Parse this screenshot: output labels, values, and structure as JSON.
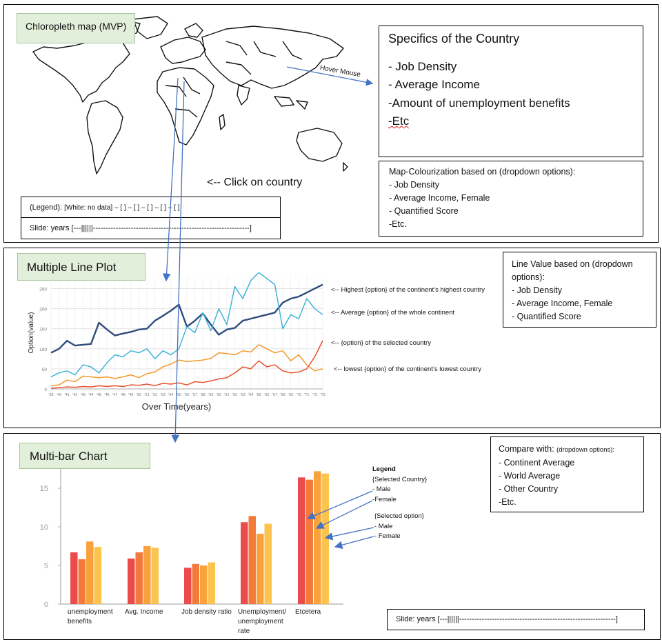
{
  "colors": {
    "green_label_bg": "#e2efda",
    "arrow_blue": "#4472c4",
    "line_dark": "#2e4b7c",
    "line_light": "#3fb3d9",
    "line_orange": "#f39a2b",
    "line_red": "#e94e2a",
    "bar_red": "#ec4b4b",
    "bar_orange": "#f47a3c",
    "bar_amber": "#f9a23b",
    "bar_yellow": "#fdc34f"
  },
  "section1": {
    "title": "Chloropleth map (MVP)",
    "specifics": {
      "title": "Specifics of the Country",
      "items": [
        "- Job Density",
        "- Average Income",
        "-Amount of unemployment benefits",
        "-Etc"
      ]
    },
    "hover_label": "Hover Mouse",
    "click_label": "<-- Click on country",
    "legend_label": "(Legend):",
    "legend_text": "[White: no data] – [     ] – [     ] – [     ] – [     ] – [     ]",
    "slide_text": "Slide: years [---||||||--------------------------------------------------------------]",
    "colourization": {
      "title": "Map-Colourization based on (dropdown options):",
      "items": [
        "- Job Density",
        "- Average Income, Female",
        "- Quantified Score",
        "-Etc."
      ]
    }
  },
  "section2": {
    "title": "Multiple Line Plot",
    "line_value_box": {
      "title": "Line Value based on (dropdown options):",
      "items": [
        "- Job Density",
        "- Average Income, Female",
        "- Quantified Score"
      ]
    },
    "annotations": [
      "<-- Highest {option} of the continent’s highest country",
      "<-- Average {option} of the whole continent",
      "<-- {option} of the selected country",
      "<-- lowest {option} of the continent’s lowest country"
    ]
  },
  "section3": {
    "title": "Multi-bar Chart",
    "compare_box": {
      "title": "Compare with:",
      "title_suffix": "(dropdown options):",
      "items": [
        "- Continent Average",
        "- World Average",
        "- Other Country",
        "-Etc."
      ]
    },
    "legend": {
      "title": "Legend",
      "group1": "{Selected Country}",
      "g1_items": [
        "- Male",
        "-Female"
      ],
      "group2": "{Selected option}",
      "g2_items": [
        "- Male",
        "- Female"
      ]
    },
    "slide_text": "Slide: years [---||||||--------------------------------------------------------------]"
  },
  "chart_data": [
    {
      "type": "line",
      "title": "",
      "xlabel": "Over Time(years)",
      "ylabel": "Option(value)",
      "x": [
        "'39",
        "'40",
        "'41",
        "'42",
        "'43",
        "'44",
        "'45",
        "'46",
        "'47",
        "'48",
        "'49",
        "'50",
        "'51",
        "'52",
        "'53",
        "'54",
        "'55",
        "'56",
        "'57",
        "'58",
        "'59",
        "'60",
        "'61",
        "'62",
        "'63",
        "'64",
        "'65",
        "'66",
        "'67",
        "'68",
        "'69",
        "'70",
        "'71",
        "'72",
        "'73"
      ],
      "ylim": [
        0,
        280
      ],
      "yticks": [
        0,
        50,
        100,
        150,
        200,
        250
      ],
      "grid": true,
      "series": [
        {
          "color": "#2e4b7c",
          "values": [
            90,
            100,
            120,
            108,
            110,
            112,
            165,
            148,
            133,
            138,
            142,
            148,
            150,
            170,
            182,
            195,
            210,
            155,
            170,
            188,
            160,
            135,
            148,
            152,
            170,
            175,
            180,
            185,
            190,
            215,
            225,
            230,
            240,
            250,
            260
          ]
        },
        {
          "color": "#3fb3d9",
          "values": [
            30,
            40,
            45,
            35,
            60,
            55,
            40,
            65,
            85,
            80,
            95,
            90,
            100,
            75,
            95,
            85,
            100,
            155,
            140,
            190,
            145,
            200,
            160,
            255,
            225,
            270,
            290,
            275,
            260,
            150,
            185,
            175,
            225,
            200,
            185
          ]
        },
        {
          "color": "#f39a2b",
          "values": [
            8,
            10,
            22,
            18,
            32,
            30,
            28,
            30,
            26,
            30,
            35,
            28,
            38,
            42,
            55,
            62,
            72,
            68,
            70,
            72,
            76,
            90,
            88,
            85,
            95,
            92,
            110,
            100,
            90,
            95,
            70,
            85,
            60,
            45,
            50
          ]
        },
        {
          "color": "#e94e2a",
          "values": [
            2,
            3,
            5,
            4,
            6,
            5,
            8,
            6,
            8,
            6,
            10,
            9,
            12,
            8,
            14,
            12,
            15,
            10,
            18,
            16,
            20,
            25,
            28,
            40,
            55,
            50,
            70,
            55,
            60,
            45,
            40,
            42,
            50,
            80,
            120
          ]
        }
      ]
    },
    {
      "type": "bar",
      "title": "",
      "xlabel": "",
      "ylabel": "",
      "categories": [
        "unemployment benefits",
        "Avg. Income",
        "Job density ratio",
        "Unemployment/ unemployment rate",
        "Etcetera"
      ],
      "ylim": [
        0,
        17.5
      ],
      "yticks": [
        0,
        5,
        10,
        15
      ],
      "series": [
        {
          "color": "#ec4b4b",
          "values": [
            6.7,
            5.9,
            4.7,
            10.6,
            16.4
          ]
        },
        {
          "color": "#f47a3c",
          "values": [
            5.8,
            6.7,
            5.2,
            11.4,
            16.1
          ]
        },
        {
          "color": "#f9a23b",
          "values": [
            8.1,
            7.5,
            5.0,
            9.1,
            17.2
          ]
        },
        {
          "color": "#fdc34f",
          "values": [
            7.4,
            7.3,
            5.4,
            10.4,
            16.9
          ]
        }
      ]
    }
  ]
}
